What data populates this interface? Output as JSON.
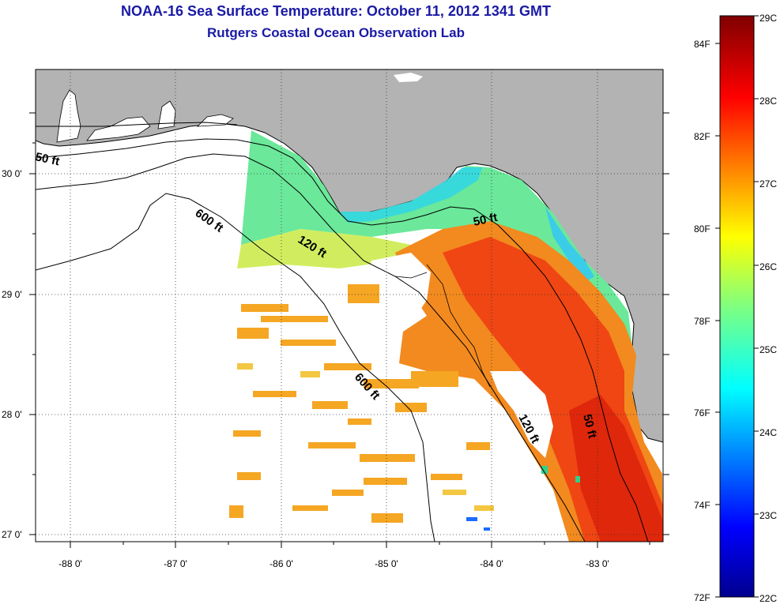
{
  "title": {
    "line1": "NOAA-16 Sea Surface Temperature:  October 11, 2012 1341 GMT",
    "line2": "Rutgers Coastal Ocean Observation Lab"
  },
  "map": {
    "region": "Eastern Gulf of Mexico / Florida west coast",
    "lat_range": [
      26.97,
      30.9
    ],
    "lon_range": [
      -88.33,
      -82.37
    ],
    "lat_ticks": [
      "30 0'",
      "29 0'",
      "28 0'",
      "27 0'"
    ],
    "lon_ticks": [
      "-88 0'",
      "-87 0'",
      "-86 0'",
      "-85 0'",
      "-84 0'",
      "-83 0'"
    ],
    "land_color": "#b3b3b3",
    "gridlines": "dotted",
    "isobath_labels": [
      {
        "text": "50 ft",
        "depth": "50 ft"
      },
      {
        "text": "600 ft",
        "depth": "600 ft"
      },
      {
        "text": "120 ft",
        "depth": "120 ft"
      },
      {
        "text": "50 ft",
        "depth": "50 ft"
      },
      {
        "text": "600 ft",
        "depth": "600 ft"
      },
      {
        "text": "120 ft",
        "depth": "120 ft"
      },
      {
        "text": "50 ft",
        "depth": "50 ft"
      }
    ]
  },
  "colorbar": {
    "celsius_range": [
      22,
      29
    ],
    "fahrenheit_range": [
      72,
      84
    ],
    "celsius_labels": [
      "29C",
      "28C",
      "27C",
      "26C",
      "25C",
      "24C",
      "23C",
      "22C"
    ],
    "fahrenheit_labels": [
      "84F",
      "82F",
      "80F",
      "78F",
      "76F",
      "74F",
      "72F"
    ],
    "colormap": "jet"
  }
}
